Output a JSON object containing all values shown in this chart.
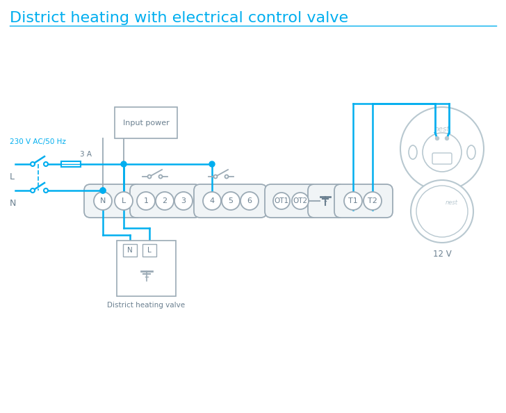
{
  "title": "District heating with electrical control valve",
  "title_color": "#00AEEF",
  "title_fontsize": 16,
  "line_color": "#00AEEF",
  "wire_color": "#00AEEF",
  "gray_color": "#9BAAB5",
  "light_gray": "#B8C8D0",
  "text_gray": "#6B8090",
  "bg_color": "#ffffff",
  "label_230v": "230 V AC/50 Hz",
  "label_L": "L",
  "label_N": "N",
  "label_3A": "3 A",
  "label_input_power": "Input power",
  "label_district": "District heating valve",
  "label_12v": "12 V",
  "figw": 7.28,
  "figh": 5.94,
  "dpi": 100
}
